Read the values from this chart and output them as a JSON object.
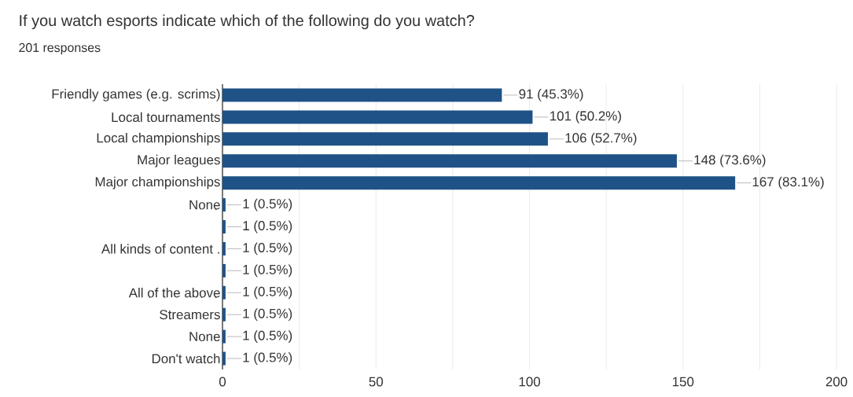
{
  "chart_data": {
    "type": "bar",
    "orientation": "horizontal",
    "title": "If you watch esports indicate which of the following do you watch?",
    "subtitle": "201 responses",
    "categories": [
      "Friendly games (e.g. scrims)",
      "Local tournaments",
      "Local championships",
      "Major leagues",
      "Major championships",
      "None",
      null,
      "All kinds of content .",
      null,
      "All of the above",
      "Streamers",
      "None",
      "Don't watch"
    ],
    "values": [
      91,
      101,
      106,
      148,
      167,
      1,
      1,
      1,
      1,
      1,
      1,
      1,
      1
    ],
    "value_labels": [
      "91 (45.3%)",
      "101 (50.2%)",
      "106 (52.7%)",
      "148 (73.6%)",
      "167 (83.1%)",
      "1 (0.5%)",
      "1 (0.5%)",
      "1 (0.5%)",
      "1 (0.5%)",
      "1 (0.5%)",
      "1 (0.5%)",
      "1 (0.5%)",
      "1 (0.5%)"
    ],
    "color": "#1f5286",
    "xlim": [
      0,
      200
    ],
    "xticks": [
      0,
      {
        "value": 25,
        "label": null
      },
      50,
      {
        "value": 75,
        "label": null
      },
      100,
      {
        "value": 125,
        "label": null
      },
      150,
      {
        "value": 175,
        "label": null
      },
      200
    ],
    "grid": "x"
  }
}
